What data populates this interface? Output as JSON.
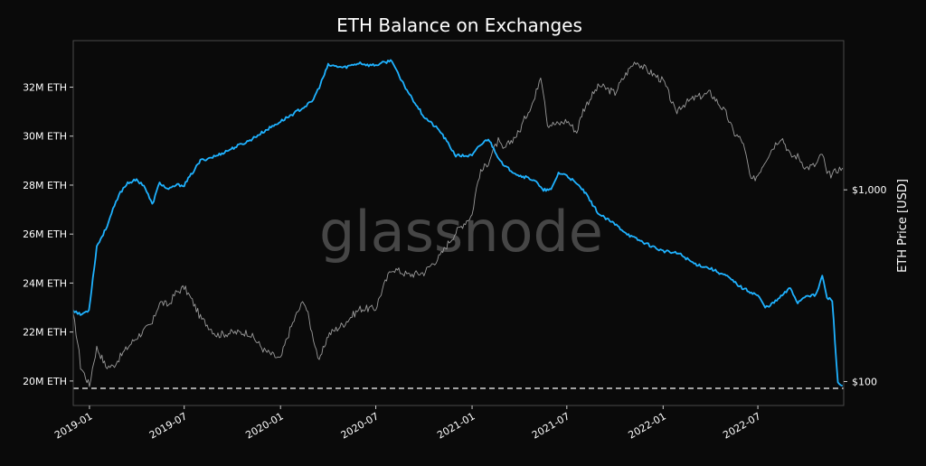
{
  "chart_data": {
    "type": "line",
    "title": "ETH Balance on Exchanges",
    "watermark": "glassnode",
    "xlabel": "",
    "ylabel": "",
    "ylabel_right": "ETH Price [USD]",
    "x_ticks": [
      "2019-01",
      "2019-07",
      "2020-01",
      "2020-07",
      "2021-01",
      "2021-07",
      "2022-01",
      "2022-07"
    ],
    "y_ticks_left": [
      "20M ETH",
      "22M ETH",
      "24M ETH",
      "26M ETH",
      "28M ETH",
      "30M ETH",
      "32M ETH"
    ],
    "y_ticks_right": [
      "$100",
      "$1,000"
    ],
    "ylim_left": [
      19.0,
      33.9
    ],
    "ylim_right_log": [
      75,
      6000
    ],
    "xlim": [
      "2018-12-01",
      "2022-12-12"
    ],
    "grid": false,
    "reference_line": {
      "value": 19.7,
      "style": "dashed"
    },
    "series": [
      {
        "axis": "left",
        "color": "#1fb2ff",
        "x": [
          "2018-12-01",
          "2018-12-15",
          "2018-12-31",
          "2019-01-15",
          "2019-02-01",
          "2019-02-15",
          "2019-03-01",
          "2019-03-15",
          "2019-04-01",
          "2019-04-15",
          "2019-05-01",
          "2019-05-15",
          "2019-06-01",
          "2019-06-15",
          "2019-07-01",
          "2019-08-01",
          "2019-09-01",
          "2019-10-01",
          "2019-11-01",
          "2019-12-01",
          "2020-01-01",
          "2020-02-01",
          "2020-03-01",
          "2020-03-15",
          "2020-04-01",
          "2020-05-01",
          "2020-06-01",
          "2020-06-15",
          "2020-07-01",
          "2020-08-01",
          "2020-08-15",
          "2020-09-01",
          "2020-10-01",
          "2020-11-01",
          "2020-12-01",
          "2021-01-01",
          "2021-01-15",
          "2021-02-01",
          "2021-03-01",
          "2021-04-01",
          "2021-05-01",
          "2021-05-15",
          "2021-06-01",
          "2021-06-15",
          "2021-07-01",
          "2021-08-01",
          "2021-09-01",
          "2021-10-01",
          "2021-11-01",
          "2021-12-01",
          "2022-01-01",
          "2022-02-01",
          "2022-03-01",
          "2022-04-01",
          "2022-05-01",
          "2022-06-01",
          "2022-07-01",
          "2022-07-15",
          "2022-08-01",
          "2022-09-01",
          "2022-09-15",
          "2022-10-01",
          "2022-10-20",
          "2022-11-01",
          "2022-11-10",
          "2022-11-20",
          "2022-12-01",
          "2022-12-10"
        ],
        "values": [
          22.9,
          22.7,
          22.9,
          25.5,
          26.2,
          27.0,
          27.7,
          28.1,
          28.2,
          28.0,
          27.2,
          28.1,
          27.8,
          28.0,
          28.0,
          29.0,
          29.2,
          29.5,
          29.8,
          30.2,
          30.6,
          31.0,
          31.4,
          32.0,
          32.9,
          32.8,
          33.0,
          32.9,
          32.9,
          33.1,
          32.4,
          31.8,
          30.8,
          30.2,
          29.2,
          29.2,
          29.6,
          29.9,
          28.8,
          28.4,
          28.2,
          27.8,
          27.8,
          28.5,
          28.4,
          27.8,
          26.8,
          26.4,
          25.9,
          25.6,
          25.3,
          25.2,
          24.8,
          24.6,
          24.3,
          23.8,
          23.5,
          23.0,
          23.2,
          23.8,
          23.2,
          23.5,
          23.5,
          24.3,
          23.4,
          23.3,
          19.9,
          19.8
        ]
      },
      {
        "axis": "right",
        "color": "#9a9a9a",
        "x": [
          "2018-12-01",
          "2018-12-15",
          "2019-01-01",
          "2019-01-15",
          "2019-02-01",
          "2019-02-15",
          "2019-03-01",
          "2019-04-01",
          "2019-05-01",
          "2019-05-15",
          "2019-06-01",
          "2019-06-15",
          "2019-07-01",
          "2019-08-01",
          "2019-09-01",
          "2019-10-01",
          "2019-11-01",
          "2019-12-01",
          "2020-01-01",
          "2020-02-01",
          "2020-02-15",
          "2020-03-01",
          "2020-03-15",
          "2020-04-01",
          "2020-05-01",
          "2020-06-01",
          "2020-07-01",
          "2020-08-01",
          "2020-09-01",
          "2020-10-01",
          "2020-11-01",
          "2020-12-01",
          "2021-01-01",
          "2021-01-15",
          "2021-02-01",
          "2021-02-20",
          "2021-03-01",
          "2021-04-01",
          "2021-05-01",
          "2021-05-12",
          "2021-05-25",
          "2021-06-15",
          "2021-07-01",
          "2021-07-20",
          "2021-08-01",
          "2021-09-01",
          "2021-10-01",
          "2021-11-01",
          "2021-11-10",
          "2021-12-01",
          "2022-01-01",
          "2022-01-25",
          "2022-02-01",
          "2022-03-01",
          "2022-04-01",
          "2022-05-01",
          "2022-05-15",
          "2022-06-01",
          "2022-06-18",
          "2022-07-01",
          "2022-08-01",
          "2022-08-15",
          "2022-09-01",
          "2022-09-15",
          "2022-10-01",
          "2022-10-20",
          "2022-11-01",
          "2022-11-10",
          "2022-11-20",
          "2022-12-01",
          "2022-12-10"
        ],
        "values": [
          220,
          120,
          95,
          150,
          120,
          120,
          135,
          170,
          200,
          260,
          250,
          290,
          310,
          215,
          175,
          180,
          180,
          145,
          130,
          225,
          265,
          180,
          125,
          175,
          200,
          240,
          240,
          390,
          360,
          370,
          450,
          600,
          740,
          1200,
          1400,
          1800,
          1600,
          2000,
          3000,
          4000,
          2200,
          2200,
          2300,
          2000,
          2600,
          3500,
          3200,
          4400,
          4700,
          4200,
          3700,
          2500,
          2700,
          3000,
          3200,
          2500,
          2000,
          1800,
          1100,
          1200,
          1700,
          1900,
          1500,
          1500,
          1300,
          1350,
          1550,
          1200,
          1200,
          1280,
          1300
        ]
      }
    ]
  }
}
